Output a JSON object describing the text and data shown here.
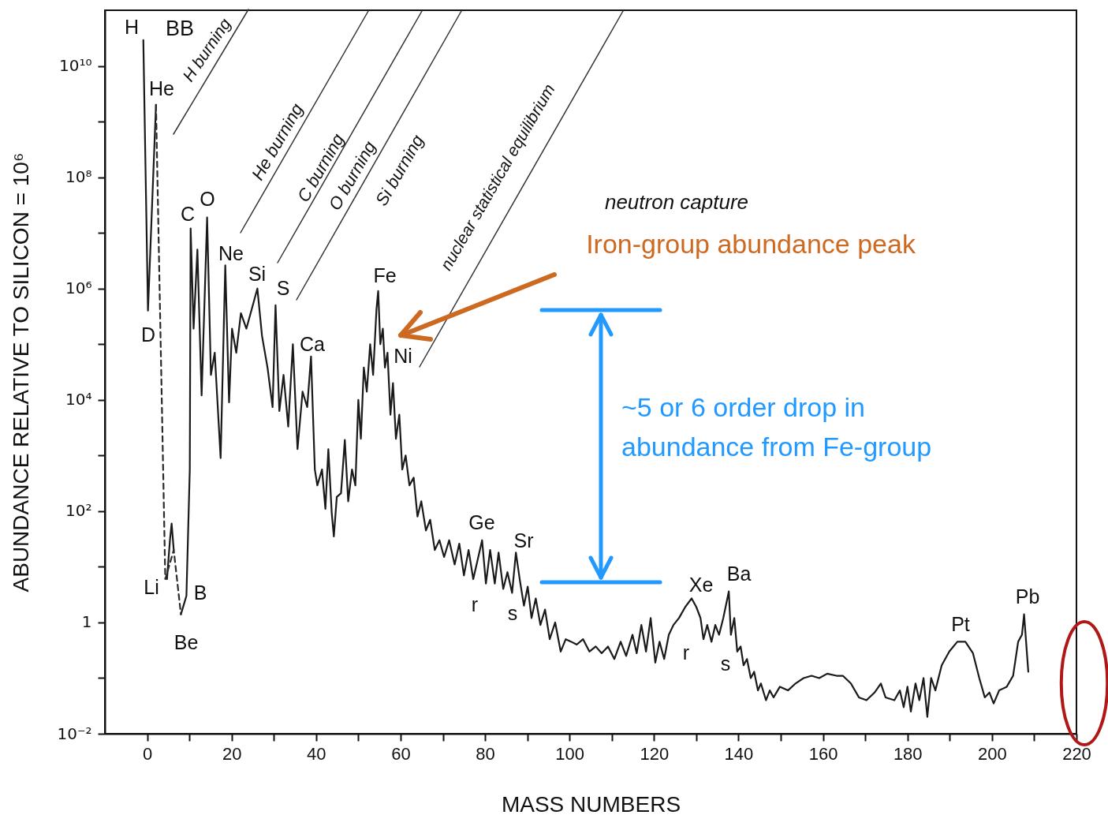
{
  "chart_data": {
    "type": "line",
    "xlabel": "MASS NUMBERS",
    "ylabel": "ABUNDANCE RELATIVE TO SILICON = 10⁶",
    "log": "y",
    "grid": false,
    "marker": "none",
    "xlim": [
      -10,
      220
    ],
    "xticks": [
      0,
      {
        "value": 10,
        "label": null
      },
      20,
      {
        "value": 30,
        "label": null
      },
      40,
      {
        "value": 50,
        "label": null
      },
      60,
      {
        "value": 70,
        "label": null
      },
      80,
      {
        "value": 90,
        "label": null
      },
      100,
      {
        "value": 110,
        "label": null
      },
      120,
      {
        "value": 130,
        "label": null
      },
      140,
      {
        "value": 150,
        "label": null
      },
      160,
      {
        "value": 170,
        "label": null
      },
      180,
      {
        "value": 190,
        "label": null
      },
      200,
      {
        "value": 210,
        "label": null
      },
      220
    ],
    "ylim": [
      0.01,
      100000000000
    ],
    "yticks": [
      {
        "value": 0.01,
        "label": "10⁻²"
      },
      {
        "value": 0.1,
        "label": null
      },
      1,
      {
        "value": 10,
        "label": null
      },
      {
        "value": 100,
        "label": "10²"
      },
      {
        "value": 1000,
        "label": null
      },
      {
        "value": 10000,
        "label": "10⁴"
      },
      {
        "value": 100000,
        "label": null
      },
      {
        "value": 1000000,
        "label": "10⁶"
      },
      {
        "value": 10000000,
        "label": null
      },
      {
        "value": 100000000,
        "label": "10⁸"
      },
      {
        "value": 1000000000,
        "label": null
      },
      {
        "value": 10000000000,
        "label": "10¹⁰"
      }
    ],
    "series": [
      {
        "color": "#1a1a1a",
        "line_style": "solid",
        "x": [
          -0.9,
          0.2,
          2.1,
          3,
          4.7,
          5.4,
          5.8,
          6.3,
          7,
          8.0,
          9.3,
          10.1,
          10.3,
          11,
          11.9,
          12.9,
          14.2,
          15.1,
          16,
          17.4,
          18.5,
          19.4,
          20.1,
          21.1,
          22.2,
          23.5,
          26.1,
          27.2,
          28.5,
          29.7,
          30.4,
          31.3,
          32.3,
          33.4,
          34.5,
          35.6,
          36.8,
          37.9,
          38.8,
          39.7,
          40.3,
          41.4,
          42.2,
          42.9,
          43.7,
          44.2,
          44.9,
          45.9,
          46.8,
          47.6,
          48.5,
          49.3,
          50,
          50.6,
          51.3,
          52,
          52.8,
          53.5,
          54.3,
          54.7,
          55.2,
          55.8,
          56.3,
          56.9,
          57.6,
          58.2,
          58.9,
          59.7,
          60.4,
          61.2,
          62.1,
          63.1,
          64,
          64.9,
          66,
          67,
          68.1,
          69.2,
          70.3,
          71.5,
          72.8,
          73.9,
          75,
          76.1,
          77.2,
          78.4,
          79.3,
          80.2,
          81.2,
          82.3,
          83.2,
          84.3,
          85.3,
          86.4,
          87.3,
          88.2,
          89.2,
          90.1,
          91,
          92,
          93.1,
          94.2,
          95.3,
          96.6,
          97.9,
          99.1,
          100.4,
          101.7,
          103.2,
          104.7,
          106.2,
          107.6,
          109.1,
          110.6,
          112.1,
          113.4,
          114.9,
          115.9,
          117,
          118.1,
          119.2,
          120.3,
          121.3,
          122.4,
          123.5,
          124.6,
          125.9,
          127.4,
          128.9,
          130,
          131,
          131.7,
          132.6,
          133.6,
          134.5,
          135.4,
          136.4,
          137.7,
          138.2,
          139,
          139.7,
          140.5,
          141.2,
          142,
          142.9,
          143.7,
          144.6,
          145.3,
          146.5,
          147.4,
          148.3,
          149.8,
          151.7,
          153.5,
          155.4,
          157.3,
          159.1,
          161,
          163.2,
          164.7,
          166.6,
          168.5,
          170.3,
          172.2,
          173.7,
          174.8,
          176.9,
          178.2,
          179.1,
          180,
          180.8,
          181.9,
          182.8,
          183.8,
          184.7,
          185.6,
          186.6,
          188.1,
          189.9,
          191.8,
          193.7,
          195.5,
          197,
          198.3,
          199.4,
          200.4,
          201.7,
          203.5,
          205,
          206.2,
          207.1,
          207.6,
          208.6
        ],
        "values": [
          29000000000,
          400000,
          2000000000,
          null,
          6,
          30,
          60,
          20,
          null,
          1.4,
          3,
          560,
          12000000,
          190000,
          5000000,
          12000,
          19000000,
          28000,
          70000,
          900,
          2600000,
          9000,
          190000,
          70000,
          360000,
          190000,
          1000000,
          140000,
          38000,
          7400,
          500000,
          6300,
          28000,
          3300,
          100000,
          1300,
          14000,
          7400,
          60000,
          560,
          290,
          560,
          110,
          1300,
          93,
          35,
          180,
          210,
          1900,
          150,
          560,
          290,
          10000,
          2000,
          38000,
          14000,
          100000,
          28000,
          430000,
          900000,
          100000,
          190000,
          38000,
          70000,
          5400,
          20000,
          2000,
          5400,
          560,
          1000,
          290,
          400,
          80,
          150,
          45,
          70,
          20,
          30,
          15,
          30,
          11,
          26,
          7,
          20,
          6,
          15,
          30,
          5,
          20,
          5,
          18,
          4,
          8,
          3.4,
          18,
          6,
          2,
          4.4,
          1.2,
          2.7,
          0.9,
          1.7,
          0.5,
          1,
          0.3,
          0.5,
          0.45,
          0.4,
          0.5,
          0.3,
          0.37,
          0.28,
          0.37,
          0.22,
          0.45,
          0.25,
          0.6,
          0.28,
          0.9,
          0.3,
          1.2,
          0.19,
          0.45,
          0.22,
          0.6,
          0.9,
          1.2,
          1.9,
          2.7,
          1.9,
          1.2,
          0.5,
          0.9,
          0.45,
          0.9,
          0.6,
          1.2,
          3.6,
          0.6,
          1.2,
          0.3,
          0.37,
          0.17,
          0.22,
          0.1,
          0.13,
          0.06,
          0.08,
          0.04,
          0.06,
          0.045,
          0.07,
          0.06,
          0.08,
          0.1,
          0.11,
          0.1,
          0.12,
          0.11,
          0.11,
          0.08,
          0.045,
          0.04,
          0.055,
          0.08,
          0.045,
          0.04,
          0.06,
          0.03,
          0.07,
          0.025,
          0.08,
          0.04,
          0.1,
          0.02,
          0.1,
          0.06,
          0.17,
          0.3,
          0.45,
          0.45,
          0.28,
          0.1,
          0.045,
          0.055,
          0.035,
          0.06,
          0.07,
          0.11,
          0.45,
          0.6,
          1.4,
          0.13
        ]
      },
      {
        "color": "#2b2b2b",
        "line_style": "dashed",
        "x": [
          2.1,
          4.3,
          6.3,
          8.0
        ],
        "values": [
          2000000000,
          6,
          20,
          1.4
        ]
      }
    ],
    "annotations": [
      "H",
      "He",
      "D",
      "C",
      "O",
      "Ne",
      "Si",
      "S",
      "Ca",
      "Fe",
      "Ni",
      "Li",
      "B",
      "Be",
      "Ge",
      "Sr",
      "r",
      "s",
      "Xe",
      "Ba",
      "r",
      "s",
      "Pt",
      "Pb",
      "BB",
      "H burning",
      "He burning",
      "C burning",
      "O burning",
      "Si burning",
      "nuclear statistical equilibrium",
      "neutron capture",
      "Iron-group abundance peak",
      "~5 or 6 order drop in\nabundance from Fe-group"
    ]
  }
}
